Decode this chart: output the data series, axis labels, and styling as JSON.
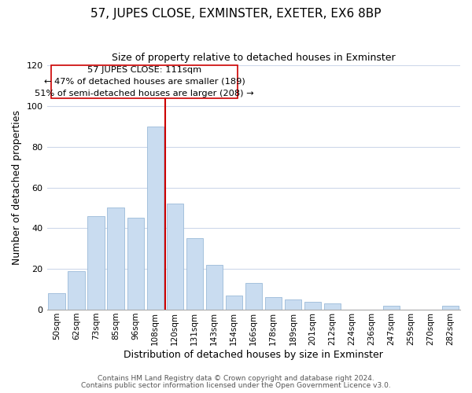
{
  "title": "57, JUPES CLOSE, EXMINSTER, EXETER, EX6 8BP",
  "subtitle": "Size of property relative to detached houses in Exminster",
  "xlabel": "Distribution of detached houses by size in Exminster",
  "ylabel": "Number of detached properties",
  "bar_labels": [
    "50sqm",
    "62sqm",
    "73sqm",
    "85sqm",
    "96sqm",
    "108sqm",
    "120sqm",
    "131sqm",
    "143sqm",
    "154sqm",
    "166sqm",
    "178sqm",
    "189sqm",
    "201sqm",
    "212sqm",
    "224sqm",
    "236sqm",
    "247sqm",
    "259sqm",
    "270sqm",
    "282sqm"
  ],
  "bar_values": [
    8,
    19,
    46,
    50,
    45,
    90,
    52,
    35,
    22,
    7,
    13,
    6,
    5,
    4,
    3,
    0,
    0,
    2,
    0,
    0,
    2
  ],
  "bar_color": "#c9dcf0",
  "bar_edge_color": "#9bbad8",
  "vline_x": 5.5,
  "vline_color": "#cc0000",
  "annotation_box_text": "57 JUPES CLOSE: 111sqm\n← 47% of detached houses are smaller (189)\n51% of semi-detached houses are larger (208) →",
  "ylim": [
    0,
    120
  ],
  "yticks": [
    0,
    20,
    40,
    60,
    80,
    100,
    120
  ],
  "footer_line1": "Contains HM Land Registry data © Crown copyright and database right 2024.",
  "footer_line2": "Contains public sector information licensed under the Open Government Licence v3.0.",
  "background_color": "#ffffff",
  "grid_color": "#cdd8ea"
}
